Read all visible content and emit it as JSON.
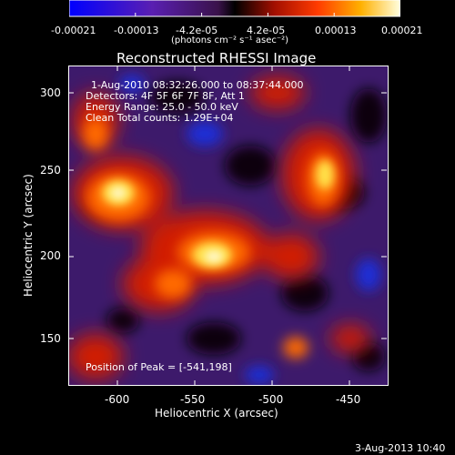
{
  "colorbar": {
    "ticks": [
      "-0.00021",
      "-0.00013",
      "-4.2e-05",
      "4.2e-05",
      "0.00013",
      "0.00021"
    ],
    "unit": "(photons cm⁻² s⁻¹ asec⁻²)"
  },
  "plot": {
    "title": "Reconstructed RHESSI Image",
    "info_lines": [
      "1-Aug-2010 08:32:26.000 to 08:37:44.000",
      "Detectors: 4F 5F 6F 7F 8F, Att 1",
      "Energy Range: 25.0 - 50.0 keV",
      "Clean    Total counts: 1.29E+04"
    ],
    "peak_label": "Position of Peak = [-541,198]",
    "x_label": "Heliocentric X (arcsec)",
    "y_label": "Heliocentric Y (arcsec)",
    "x_ticks": [
      "-600",
      "-550",
      "-500",
      "-450"
    ],
    "y_ticks": [
      "300",
      "250",
      "200",
      "150"
    ]
  },
  "footer": {
    "timestamp": "3-Aug-2013 10:40"
  },
  "colors": {
    "background": "#000000",
    "foreground": "#ffffff"
  }
}
